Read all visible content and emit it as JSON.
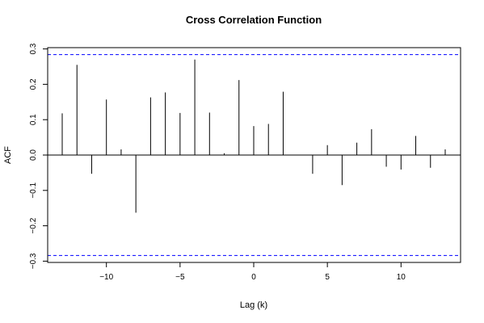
{
  "chart_data": {
    "type": "bar",
    "title": "Cross Correlation Function",
    "xlabel": "Lag (k)",
    "ylabel": "ACF",
    "xlim": [
      -13.5,
      14
    ],
    "ylim": [
      -0.3,
      0.3
    ],
    "x_ticks": [
      -10,
      -5,
      0,
      5,
      10
    ],
    "x_tick_labels": [
      "−10",
      "−5",
      "0",
      "5",
      "10"
    ],
    "y_ticks": [
      -0.3,
      -0.2,
      -0.1,
      0.0,
      0.1,
      0.2,
      0.3
    ],
    "y_tick_labels": [
      "−0.3",
      "−0.2",
      "−0.1",
      "0.0",
      "0.1",
      "0.2",
      "0.3"
    ],
    "lags": [
      -13,
      -12,
      -11,
      -10,
      -9,
      -8,
      -7,
      -6,
      -5,
      -4,
      -3,
      -2,
      -1,
      0,
      1,
      2,
      3,
      4,
      5,
      6,
      7,
      8,
      9,
      10,
      11,
      12,
      13
    ],
    "values": [
      0.118,
      0.255,
      -0.053,
      0.157,
      0.016,
      -0.163,
      0.163,
      0.177,
      0.119,
      0.27,
      0.12,
      0.005,
      0.212,
      0.082,
      0.088,
      0.179,
      0.001,
      -0.053,
      0.028,
      -0.085,
      0.035,
      0.073,
      -0.033,
      -0.041,
      0.054,
      -0.036,
      0.016
    ],
    "confidence_limits": [
      0.284,
      -0.284
    ],
    "confidence_line_color": "#0000ff",
    "grid": false
  }
}
